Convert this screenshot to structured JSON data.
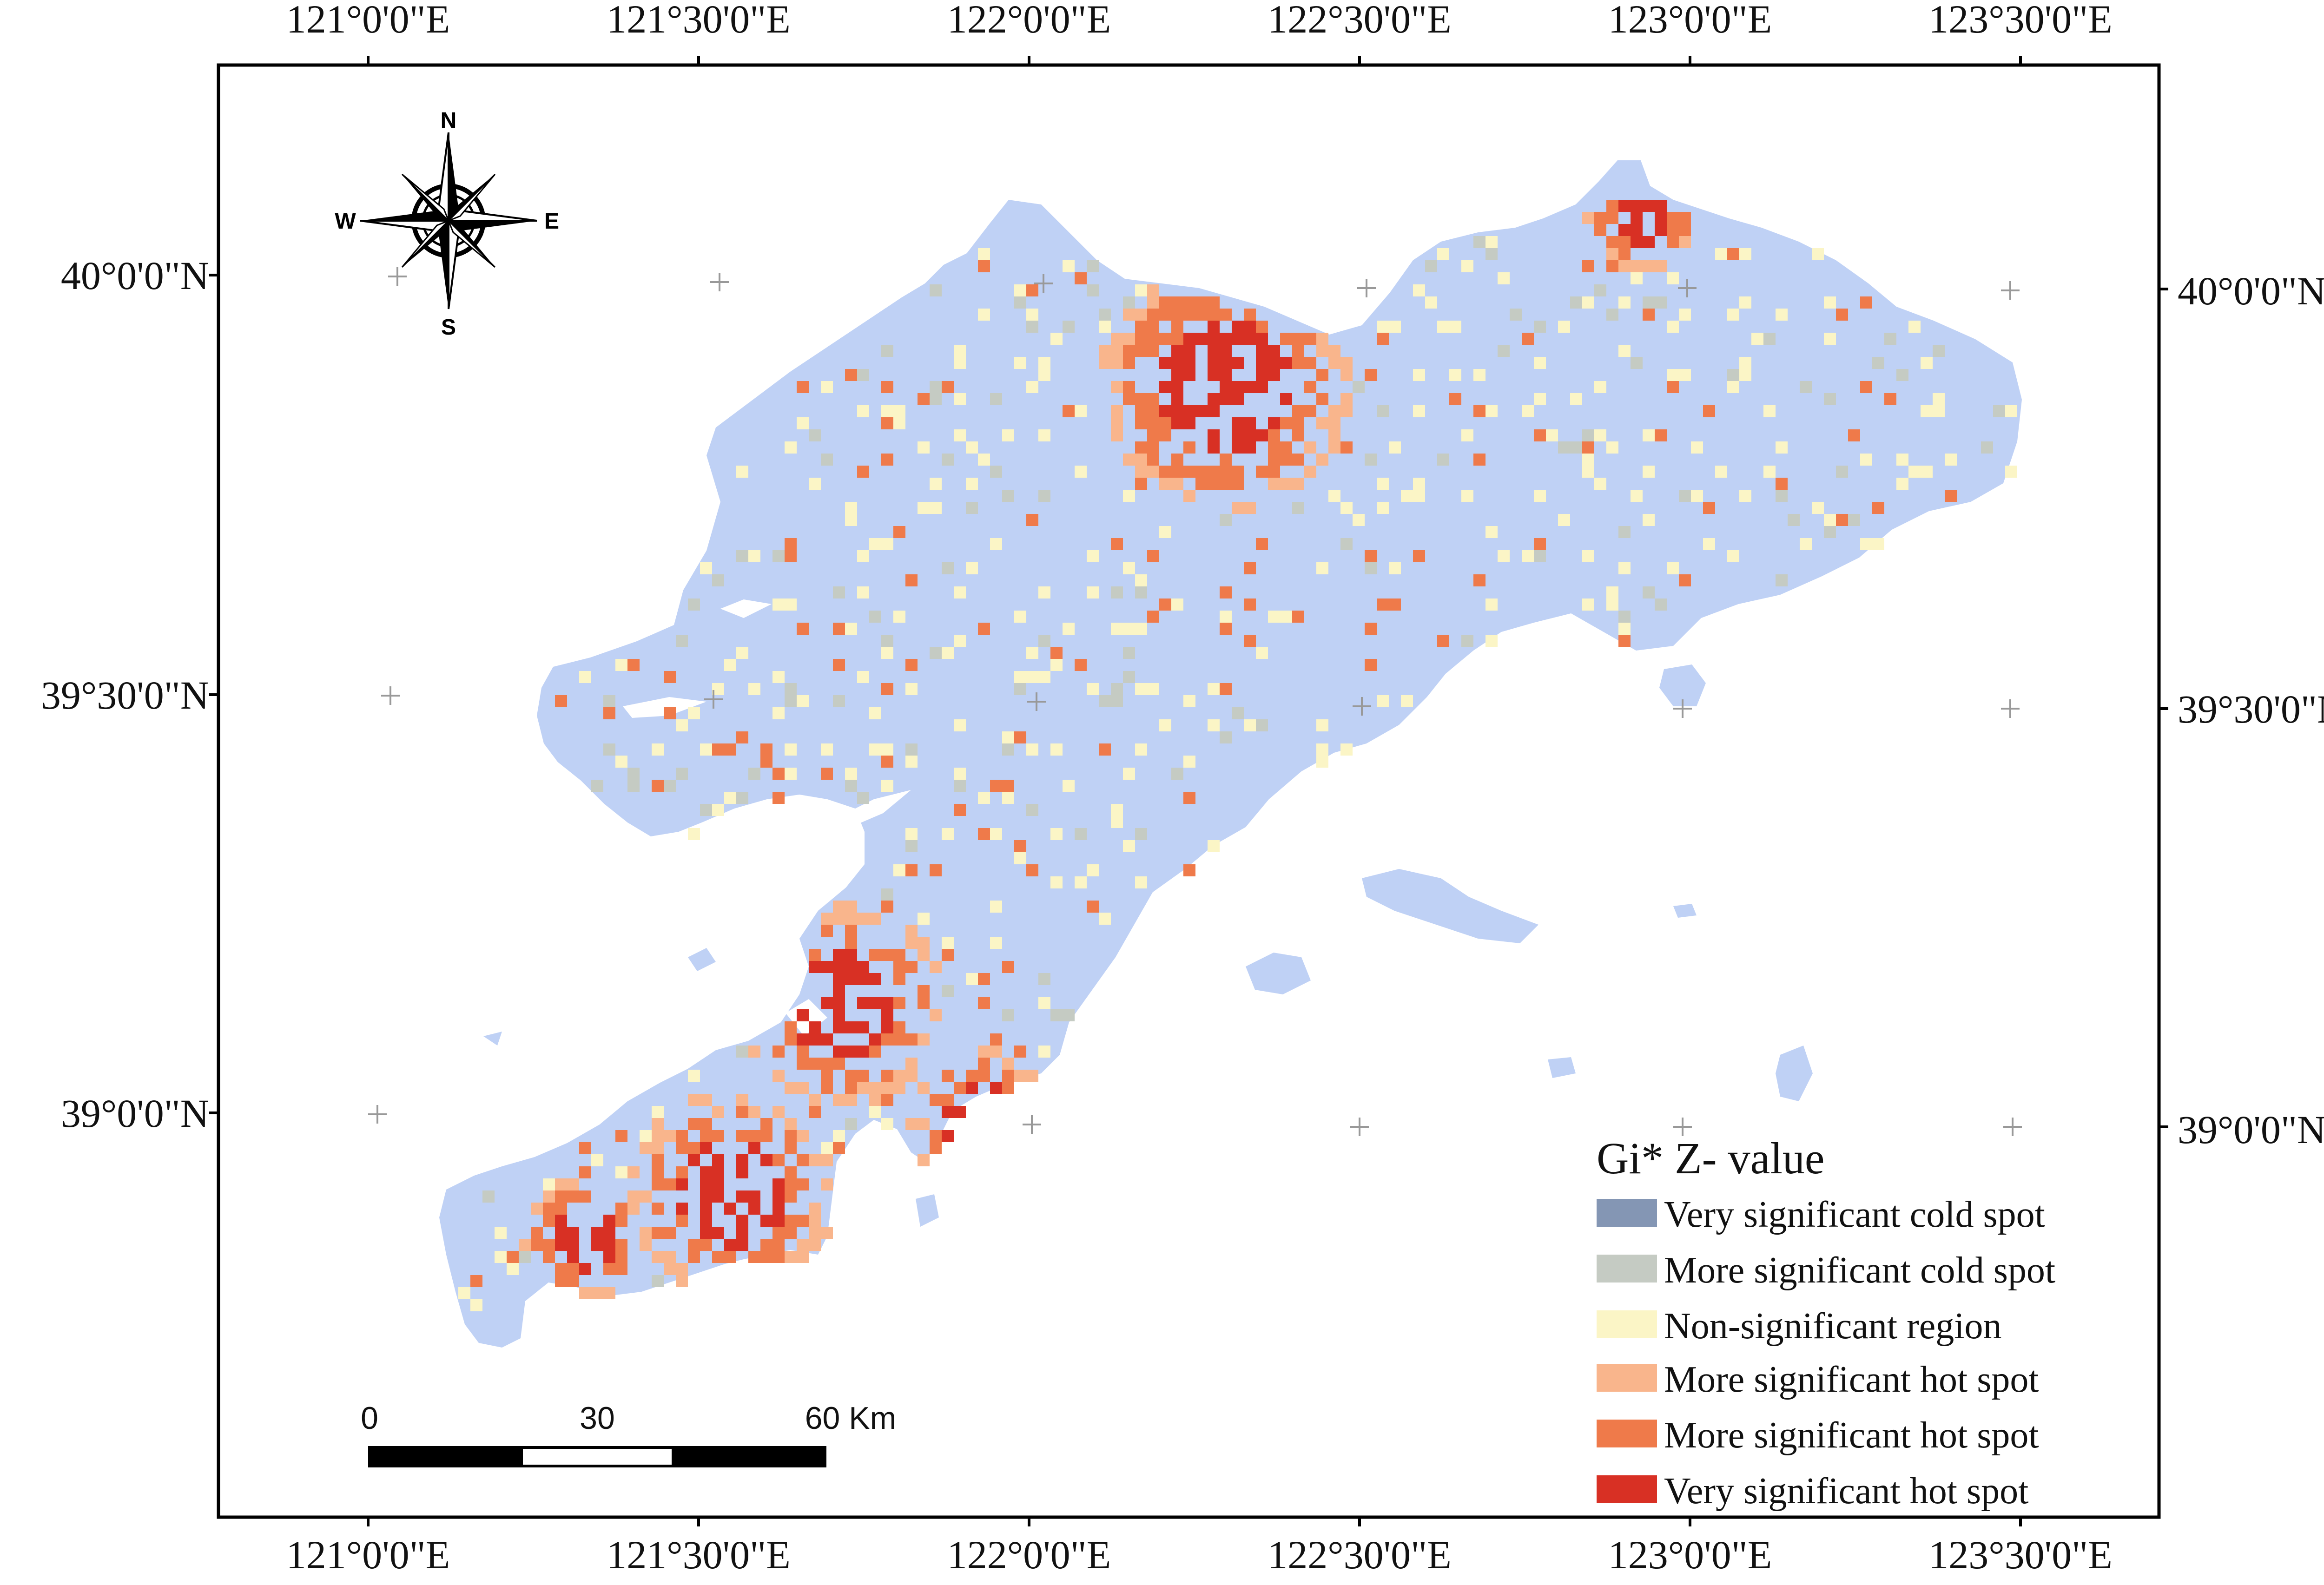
{
  "map": {
    "top_ticks": [
      "121°0'0\"E",
      "121°30'0\"E",
      "122°0'0\"E",
      "122°30'0\"E",
      "123°0'0\"E",
      "123°30'0\"E"
    ],
    "bottom_ticks": [
      "121°0'0\"E",
      "121°30'0\"E",
      "122°0'0\"E",
      "122°30'0\"E",
      "123°0'0\"E",
      "123°30'0\"E"
    ],
    "left_ticks": [
      "40°0'0\"N",
      "39°30'0\"N",
      "39°0'0\"N"
    ],
    "right_ticks": [
      "40°0'0\"N",
      "39°30'0\"N",
      "39°0'0\"N"
    ],
    "land_color": "#bfd1f5",
    "water_color": "#ffffff"
  },
  "compass": {
    "north": "N",
    "south": "S",
    "east": "E",
    "west": "W"
  },
  "scale_bar": {
    "labels": [
      "0",
      "30",
      "60 Km"
    ]
  },
  "legend": {
    "title": "Gi*  Z- value",
    "items": [
      {
        "label": "Very significant cold spot",
        "color": "#8496b4"
      },
      {
        "label": "More significant cold spot",
        "color": "#c5cbc3"
      },
      {
        "label": "Non-significant region",
        "color": "#fbf5c6"
      },
      {
        "label": "More significant hot spot",
        "color": "#f9b58c"
      },
      {
        "label": "More significant hot spot",
        "color": "#ef7a4a"
      },
      {
        "label": "Very significant hot spot",
        "color": "#d83024"
      }
    ]
  }
}
